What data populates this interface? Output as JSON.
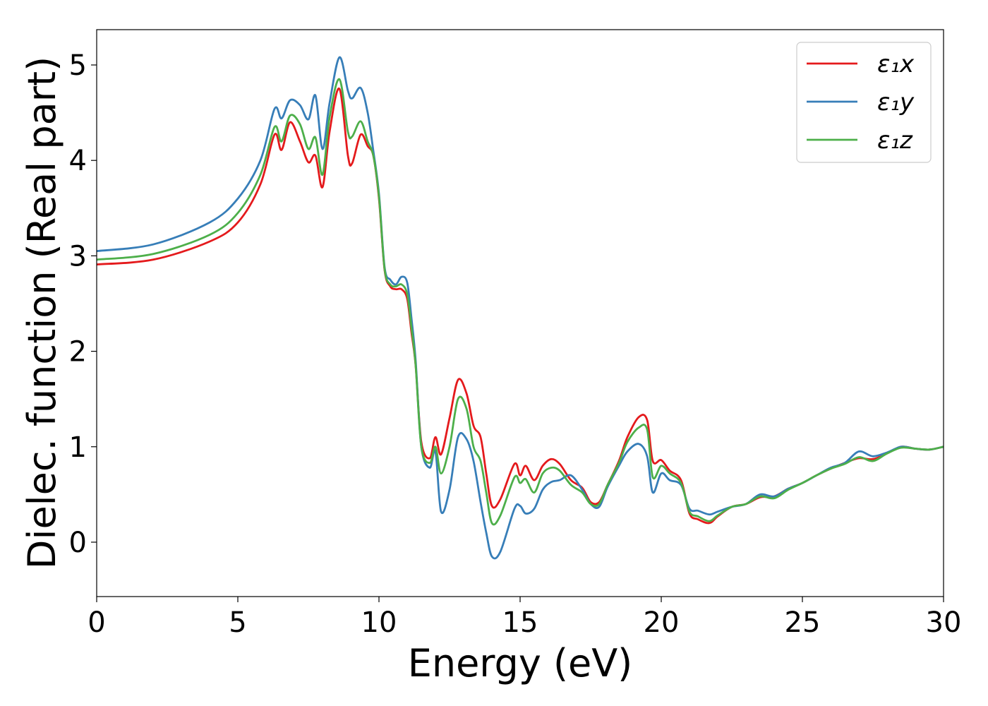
{
  "chart_data": {
    "type": "line",
    "xlabel": "Energy (eV)",
    "ylabel": "Dielec. function (Real part)",
    "xlim": [
      0,
      30
    ],
    "ylim": [
      -0.57,
      5.37
    ],
    "xticks": [
      0,
      5,
      10,
      15,
      20,
      25,
      30
    ],
    "xtick_labels": [
      "0",
      "5",
      "10",
      "15",
      "20",
      "25",
      "30"
    ],
    "yticks": [
      0,
      1,
      2,
      3,
      4,
      5
    ],
    "ytick_labels": [
      "0",
      "1",
      "2",
      "3",
      "4",
      "5"
    ],
    "grid": false,
    "legend_position": "top-right",
    "series": [
      {
        "name": "ε₁x",
        "color": "#e41a1c",
        "points": [
          [
            0,
            2.91
          ],
          [
            2,
            2.96
          ],
          [
            4,
            3.15
          ],
          [
            5,
            3.35
          ],
          [
            5.8,
            3.75
          ],
          [
            6.3,
            4.27
          ],
          [
            6.55,
            4.11
          ],
          [
            6.85,
            4.4
          ],
          [
            7.2,
            4.2
          ],
          [
            7.5,
            3.98
          ],
          [
            7.75,
            4.05
          ],
          [
            8.0,
            3.72
          ],
          [
            8.25,
            4.3
          ],
          [
            8.6,
            4.75
          ],
          [
            8.9,
            4.05
          ],
          [
            9.05,
            3.97
          ],
          [
            9.35,
            4.27
          ],
          [
            9.6,
            4.15
          ],
          [
            9.8,
            4.05
          ],
          [
            10.0,
            3.6
          ],
          [
            10.2,
            2.85
          ],
          [
            10.4,
            2.68
          ],
          [
            10.6,
            2.65
          ],
          [
            10.8,
            2.65
          ],
          [
            11.0,
            2.55
          ],
          [
            11.15,
            2.2
          ],
          [
            11.3,
            1.85
          ],
          [
            11.5,
            1.05
          ],
          [
            11.8,
            0.88
          ],
          [
            12.0,
            1.1
          ],
          [
            12.2,
            0.92
          ],
          [
            12.5,
            1.3
          ],
          [
            12.8,
            1.7
          ],
          [
            13.1,
            1.56
          ],
          [
            13.35,
            1.22
          ],
          [
            13.6,
            1.1
          ],
          [
            13.8,
            0.72
          ],
          [
            14.0,
            0.38
          ],
          [
            14.3,
            0.45
          ],
          [
            14.8,
            0.82
          ],
          [
            15.0,
            0.7
          ],
          [
            15.2,
            0.8
          ],
          [
            15.5,
            0.65
          ],
          [
            15.8,
            0.8
          ],
          [
            16.1,
            0.87
          ],
          [
            16.4,
            0.82
          ],
          [
            16.8,
            0.65
          ],
          [
            17.2,
            0.57
          ],
          [
            17.5,
            0.42
          ],
          [
            17.8,
            0.42
          ],
          [
            18.1,
            0.6
          ],
          [
            18.5,
            0.85
          ],
          [
            18.8,
            1.1
          ],
          [
            19.2,
            1.31
          ],
          [
            19.5,
            1.28
          ],
          [
            19.7,
            0.85
          ],
          [
            20.0,
            0.86
          ],
          [
            20.3,
            0.75
          ],
          [
            20.7,
            0.65
          ],
          [
            21.0,
            0.3
          ],
          [
            21.3,
            0.24
          ],
          [
            21.7,
            0.2
          ],
          [
            22.0,
            0.27
          ],
          [
            22.5,
            0.37
          ],
          [
            23.0,
            0.4
          ],
          [
            23.5,
            0.47
          ],
          [
            24.0,
            0.48
          ],
          [
            24.5,
            0.56
          ],
          [
            25.0,
            0.62
          ],
          [
            25.5,
            0.7
          ],
          [
            26.0,
            0.77
          ],
          [
            26.5,
            0.83
          ],
          [
            27.0,
            0.88
          ],
          [
            27.5,
            0.87
          ],
          [
            28.0,
            0.93
          ],
          [
            28.5,
            1.0
          ],
          [
            29.0,
            0.98
          ],
          [
            29.5,
            0.97
          ],
          [
            30.0,
            1.0
          ]
        ]
      },
      {
        "name": "ε₁y",
        "color": "#377eb8",
        "points": [
          [
            0,
            3.05
          ],
          [
            2,
            3.12
          ],
          [
            4,
            3.35
          ],
          [
            5,
            3.6
          ],
          [
            5.8,
            4.0
          ],
          [
            6.3,
            4.54
          ],
          [
            6.55,
            4.44
          ],
          [
            6.85,
            4.63
          ],
          [
            7.2,
            4.58
          ],
          [
            7.5,
            4.43
          ],
          [
            7.75,
            4.68
          ],
          [
            8.0,
            4.12
          ],
          [
            8.25,
            4.6
          ],
          [
            8.6,
            5.08
          ],
          [
            8.9,
            4.73
          ],
          [
            9.05,
            4.65
          ],
          [
            9.35,
            4.76
          ],
          [
            9.6,
            4.5
          ],
          [
            9.8,
            4.1
          ],
          [
            10.0,
            3.65
          ],
          [
            10.2,
            2.88
          ],
          [
            10.4,
            2.75
          ],
          [
            10.6,
            2.7
          ],
          [
            10.8,
            2.78
          ],
          [
            11.0,
            2.72
          ],
          [
            11.15,
            2.35
          ],
          [
            11.3,
            1.9
          ],
          [
            11.5,
            1.0
          ],
          [
            11.8,
            0.78
          ],
          [
            12.0,
            0.95
          ],
          [
            12.2,
            0.32
          ],
          [
            12.5,
            0.55
          ],
          [
            12.8,
            1.1
          ],
          [
            13.1,
            1.08
          ],
          [
            13.35,
            0.85
          ],
          [
            13.6,
            0.42
          ],
          [
            13.8,
            0.1
          ],
          [
            14.0,
            -0.15
          ],
          [
            14.3,
            -0.1
          ],
          [
            14.8,
            0.35
          ],
          [
            15.0,
            0.38
          ],
          [
            15.2,
            0.3
          ],
          [
            15.5,
            0.35
          ],
          [
            15.8,
            0.55
          ],
          [
            16.1,
            0.63
          ],
          [
            16.4,
            0.65
          ],
          [
            16.8,
            0.7
          ],
          [
            17.2,
            0.55
          ],
          [
            17.5,
            0.4
          ],
          [
            17.8,
            0.37
          ],
          [
            18.1,
            0.58
          ],
          [
            18.5,
            0.8
          ],
          [
            18.8,
            0.95
          ],
          [
            19.2,
            1.03
          ],
          [
            19.5,
            0.9
          ],
          [
            19.7,
            0.52
          ],
          [
            20.0,
            0.72
          ],
          [
            20.3,
            0.65
          ],
          [
            20.7,
            0.6
          ],
          [
            21.0,
            0.35
          ],
          [
            21.3,
            0.33
          ],
          [
            21.7,
            0.29
          ],
          [
            22.0,
            0.32
          ],
          [
            22.5,
            0.37
          ],
          [
            23.0,
            0.4
          ],
          [
            23.5,
            0.5
          ],
          [
            24.0,
            0.48
          ],
          [
            24.5,
            0.56
          ],
          [
            25.0,
            0.62
          ],
          [
            25.5,
            0.7
          ],
          [
            26.0,
            0.78
          ],
          [
            26.5,
            0.83
          ],
          [
            27.0,
            0.95
          ],
          [
            27.5,
            0.9
          ],
          [
            28.0,
            0.94
          ],
          [
            28.5,
            1.0
          ],
          [
            29.0,
            0.98
          ],
          [
            29.5,
            0.97
          ],
          [
            30.0,
            1.0
          ]
        ]
      },
      {
        "name": "ε₁z",
        "color": "#4daf4a",
        "points": [
          [
            0,
            2.96
          ],
          [
            2,
            3.02
          ],
          [
            4,
            3.22
          ],
          [
            5,
            3.45
          ],
          [
            5.8,
            3.85
          ],
          [
            6.3,
            4.35
          ],
          [
            6.55,
            4.2
          ],
          [
            6.85,
            4.47
          ],
          [
            7.2,
            4.38
          ],
          [
            7.5,
            4.12
          ],
          [
            7.75,
            4.24
          ],
          [
            8.0,
            3.85
          ],
          [
            8.25,
            4.45
          ],
          [
            8.6,
            4.85
          ],
          [
            8.9,
            4.3
          ],
          [
            9.05,
            4.25
          ],
          [
            9.35,
            4.41
          ],
          [
            9.6,
            4.2
          ],
          [
            9.8,
            4.05
          ],
          [
            10.0,
            3.62
          ],
          [
            10.2,
            2.86
          ],
          [
            10.4,
            2.7
          ],
          [
            10.6,
            2.68
          ],
          [
            10.8,
            2.7
          ],
          [
            11.0,
            2.6
          ],
          [
            11.15,
            2.25
          ],
          [
            11.3,
            1.85
          ],
          [
            11.5,
            1.0
          ],
          [
            11.8,
            0.83
          ],
          [
            12.0,
            1.0
          ],
          [
            12.2,
            0.72
          ],
          [
            12.5,
            1.0
          ],
          [
            12.8,
            1.5
          ],
          [
            13.1,
            1.4
          ],
          [
            13.35,
            1.0
          ],
          [
            13.6,
            0.85
          ],
          [
            13.8,
            0.52
          ],
          [
            14.0,
            0.2
          ],
          [
            14.3,
            0.28
          ],
          [
            14.8,
            0.68
          ],
          [
            15.0,
            0.62
          ],
          [
            15.2,
            0.66
          ],
          [
            15.5,
            0.52
          ],
          [
            15.8,
            0.72
          ],
          [
            16.1,
            0.78
          ],
          [
            16.4,
            0.75
          ],
          [
            16.8,
            0.6
          ],
          [
            17.2,
            0.52
          ],
          [
            17.5,
            0.4
          ],
          [
            17.8,
            0.4
          ],
          [
            18.1,
            0.6
          ],
          [
            18.5,
            0.83
          ],
          [
            18.8,
            1.05
          ],
          [
            19.2,
            1.2
          ],
          [
            19.5,
            1.18
          ],
          [
            19.7,
            0.68
          ],
          [
            20.0,
            0.8
          ],
          [
            20.3,
            0.72
          ],
          [
            20.7,
            0.62
          ],
          [
            21.0,
            0.32
          ],
          [
            21.3,
            0.27
          ],
          [
            21.7,
            0.22
          ],
          [
            22.0,
            0.28
          ],
          [
            22.5,
            0.37
          ],
          [
            23.0,
            0.4
          ],
          [
            23.5,
            0.48
          ],
          [
            24.0,
            0.46
          ],
          [
            24.5,
            0.55
          ],
          [
            25.0,
            0.62
          ],
          [
            25.5,
            0.7
          ],
          [
            26.0,
            0.77
          ],
          [
            26.5,
            0.82
          ],
          [
            27.0,
            0.89
          ],
          [
            27.5,
            0.85
          ],
          [
            28.0,
            0.93
          ],
          [
            28.5,
            0.99
          ],
          [
            29.0,
            0.98
          ],
          [
            29.5,
            0.97
          ],
          [
            30.0,
            1.0
          ]
        ]
      }
    ]
  }
}
